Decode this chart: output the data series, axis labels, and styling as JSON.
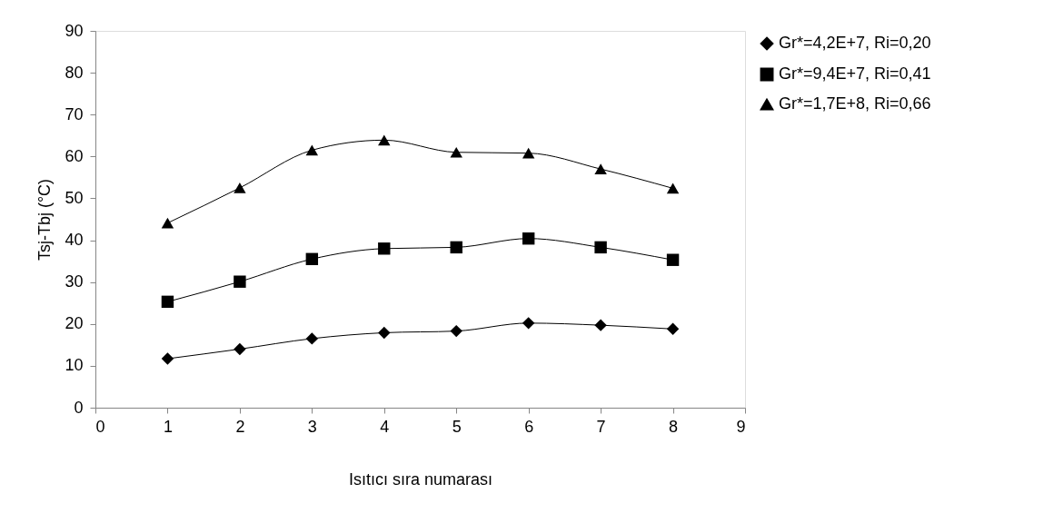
{
  "chart_data": {
    "type": "line",
    "xlabel": "Isıtıcı sıra numarası",
    "ylabel": "Tsj-Tbj (°C)",
    "x": [
      1,
      2,
      3,
      4,
      5,
      6,
      7,
      8
    ],
    "series": [
      {
        "name": "Gr*=4,2E+7, Ri=0,20",
        "color": "#000000",
        "marker": "diamond",
        "values": [
          11.7,
          14.0,
          16.5,
          17.9,
          18.3,
          20.2,
          19.7,
          18.8
        ]
      },
      {
        "name": "Gr*=9,4E+7, Ri=0,41",
        "color": "#000000",
        "marker": "square",
        "values": [
          25.3,
          30.1,
          35.5,
          38.0,
          38.3,
          40.4,
          38.3,
          35.3
        ]
      },
      {
        "name": "Gr*=1,7E+8, Ri=0,66",
        "color": "#000000",
        "marker": "triangle",
        "values": [
          44.1,
          52.5,
          61.5,
          63.9,
          61.0,
          60.8,
          57.0,
          52.4
        ]
      }
    ],
    "xlim": [
      0,
      9
    ],
    "xticks": [
      0,
      1,
      2,
      3,
      4,
      5,
      6,
      7,
      8,
      9
    ],
    "ylim": [
      0,
      90
    ],
    "yticks": [
      0,
      10,
      20,
      30,
      40,
      50,
      60,
      70,
      80,
      90
    ],
    "grid": false,
    "legend": "right",
    "line_style": "solid"
  }
}
